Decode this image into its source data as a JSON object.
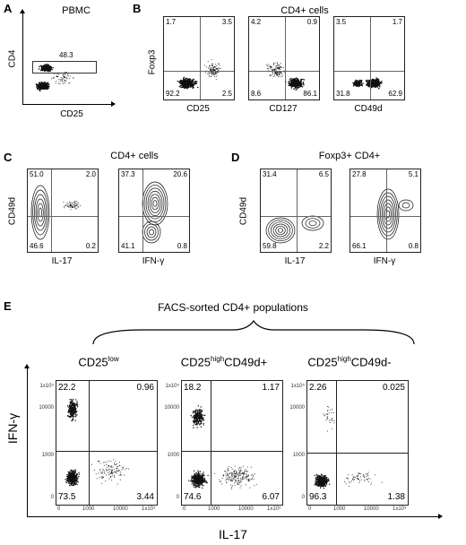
{
  "panels": {
    "A": {
      "letter": "A",
      "title": "PBMC",
      "xlabel": "CD25",
      "ylabel": "CD4",
      "gate_value": "48.3"
    },
    "B": {
      "letter": "B",
      "title": "CD4+ cells",
      "ylabel": "Foxp3",
      "plots": [
        {
          "xlabel": "CD25",
          "tl": "1.7",
          "tr": "3.5",
          "bl": "92.2",
          "br": "2.5"
        },
        {
          "xlabel": "CD127",
          "tl": "4.2",
          "tr": "0.9",
          "bl": "8.6",
          "br": "86.1"
        },
        {
          "xlabel": "CD49d",
          "tl": "3.5",
          "tr": "1.7",
          "bl": "31.8",
          "br": "62.9"
        }
      ]
    },
    "C": {
      "letter": "C",
      "title": "CD4+ cells",
      "ylabel": "CD49d",
      "plots": [
        {
          "xlabel": "IL-17",
          "tl": "51.0",
          "tr": "2.0",
          "bl": "46.6",
          "br": "0.2"
        },
        {
          "xlabel": "IFN-γ",
          "tl": "37.3",
          "tr": "20.6",
          "bl": "41.1",
          "br": "0.8"
        }
      ]
    },
    "D": {
      "letter": "D",
      "title": "Foxp3+ CD4+",
      "ylabel": "CD49d",
      "plots": [
        {
          "xlabel": "IL-17",
          "tl": "31.4",
          "tr": "6.5",
          "bl": "59.8",
          "br": "2.2"
        },
        {
          "xlabel": "IFN-γ",
          "tl": "27.8",
          "tr": "5.1",
          "bl": "66.1",
          "br": "0.8"
        }
      ]
    },
    "E": {
      "letter": "E",
      "title": "FACS-sorted CD4+ populations",
      "ylabel": "IFN-γ",
      "xlabel": "IL-17",
      "columns": [
        {
          "base": "CD25",
          "sup": "low",
          "tail": "",
          "tl": "22.2",
          "tr": "0.96",
          "bl": "73.5",
          "br": "3.44"
        },
        {
          "base": "CD25",
          "sup": "high",
          "tail": "CD49d+",
          "tl": "18.2",
          "tr": "1.17",
          "bl": "74.6",
          "br": "6.07"
        },
        {
          "base": "CD25",
          "sup": "high",
          "tail": "CD49d-",
          "tl": "2.26",
          "tr": "0.025",
          "bl": "96.3",
          "br": "1.38"
        }
      ],
      "yticks": [
        "1x10⁵",
        "10000",
        "1000",
        "0"
      ],
      "xticks": [
        "0",
        "1000",
        "10000",
        "1x10⁵"
      ]
    }
  },
  "colors": {
    "dots": "#111111",
    "axis": "#000000",
    "quadrant": "#666666"
  }
}
